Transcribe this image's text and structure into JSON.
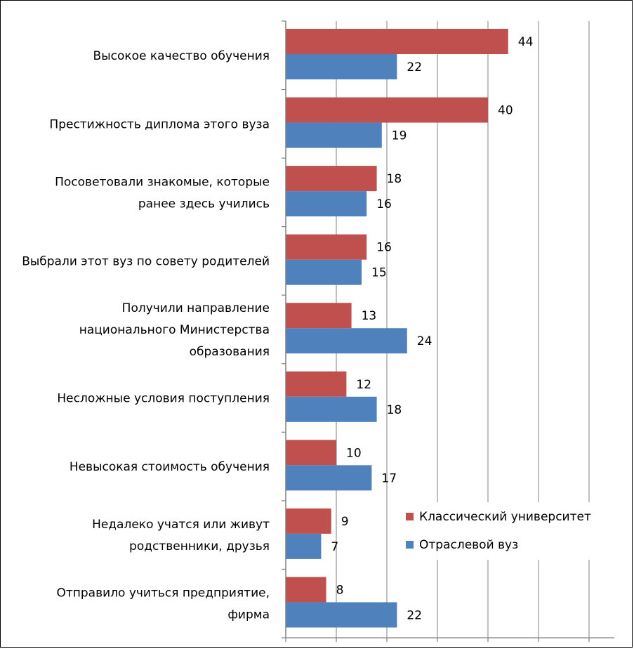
{
  "chart_data": {
    "type": "bar",
    "orientation": "horizontal",
    "categories": [
      [
        "Высокое качество обучения"
      ],
      [
        "Престижность диплома этого вуза"
      ],
      [
        "Посоветовали знакомые, которые",
        "ранее здесь учились"
      ],
      [
        "Выбрали этот вуз по совету родителей"
      ],
      [
        "Получили направление",
        "национального Министерства",
        "образования"
      ],
      [
        "Несложные условия поступления"
      ],
      [
        "Невысокая стоимость обучения"
      ],
      [
        "Недалеко учатся или живут",
        "родственники, друзья"
      ],
      [
        "Отправило учиться предприятие,",
        "фирма"
      ]
    ],
    "series": [
      {
        "name": "Классический университет",
        "color": "#c0504d",
        "values": [
          44,
          40,
          18,
          16,
          13,
          12,
          10,
          9,
          8
        ]
      },
      {
        "name": "Отраслевой вуз",
        "color": "#4f81bd",
        "values": [
          22,
          19,
          16,
          15,
          24,
          18,
          17,
          7,
          22
        ]
      }
    ],
    "xlim": [
      0,
      65
    ],
    "x_gridlines": [
      0,
      10,
      20,
      30,
      40,
      50,
      60
    ],
    "grid": true,
    "gridline_color": "#808080",
    "legend_position": "bottom-right",
    "title": "",
    "xlabel": "",
    "ylabel": ""
  }
}
